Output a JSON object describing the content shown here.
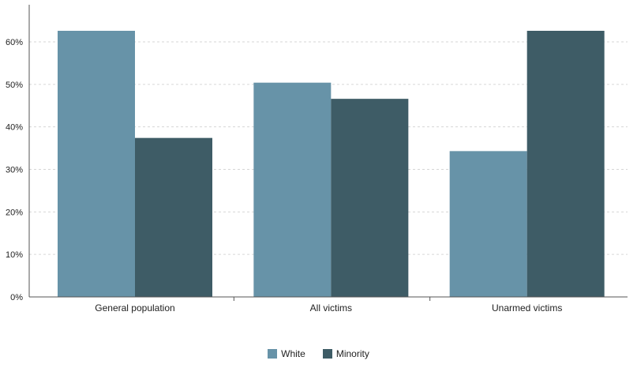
{
  "chart_data": {
    "type": "bar",
    "categories": [
      "General population",
      "All victims",
      "Unarmed victims"
    ],
    "series": [
      {
        "name": "White",
        "color": "#6793a8",
        "values": [
          62.6,
          50.4,
          34.3
        ]
      },
      {
        "name": "Minority",
        "color": "#3e5c66",
        "values": [
          37.4,
          46.6,
          62.6
        ]
      }
    ],
    "yticks": [
      "0%",
      "10%",
      "20%",
      "30%",
      "40%",
      "50%",
      "60%"
    ],
    "ylim": [
      0,
      68
    ],
    "grid": true,
    "legend_position": "bottom-center",
    "title": "",
    "xlabel": "",
    "ylabel": ""
  }
}
